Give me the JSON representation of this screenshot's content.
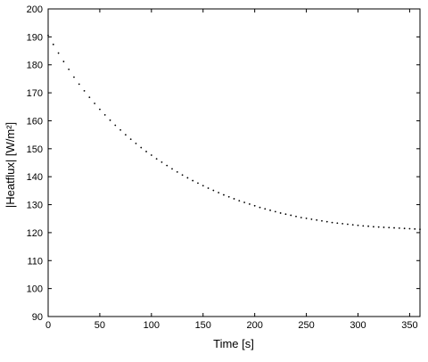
{
  "chart_data": {
    "type": "scatter",
    "title": "",
    "xlabel": "Time [s]",
    "ylabel": "|Heatflux| [W/m²]",
    "xlim": [
      0,
      360
    ],
    "ylim": [
      90,
      200
    ],
    "xticks": [
      0,
      50,
      100,
      150,
      200,
      250,
      300,
      350
    ],
    "yticks": [
      90,
      100,
      110,
      120,
      130,
      140,
      150,
      160,
      170,
      180,
      190,
      200
    ],
    "grid": false,
    "legend": "none",
    "series": [
      {
        "color": "#000000",
        "x": [
          0,
          5,
          10,
          15,
          20,
          25,
          30,
          35,
          40,
          45,
          50,
          55,
          60,
          65,
          70,
          75,
          80,
          85,
          90,
          95,
          100,
          105,
          110,
          115,
          120,
          125,
          130,
          135,
          140,
          145,
          150,
          155,
          160,
          165,
          170,
          175,
          180,
          185,
          190,
          195,
          200,
          205,
          210,
          215,
          220,
          225,
          230,
          235,
          240,
          245,
          250,
          255,
          260,
          265,
          270,
          275,
          280,
          285,
          290,
          295,
          300,
          305,
          310,
          315,
          320,
          325,
          330,
          335,
          340,
          345,
          350,
          355,
          360
        ],
        "y": [
          190.5,
          187.3,
          184.2,
          181.2,
          178.4,
          175.6,
          173.1,
          170.7,
          168.4,
          166.2,
          164.1,
          162.1,
          160.2,
          158.4,
          156.7,
          155.0,
          153.4,
          151.9,
          150.4,
          149.0,
          147.7,
          146.4,
          145.2,
          144.0,
          142.8,
          141.7,
          140.6,
          139.6,
          138.6,
          137.7,
          136.8,
          135.9,
          135.1,
          134.3,
          133.5,
          132.8,
          132.1,
          131.4,
          130.8,
          130.2,
          129.6,
          129.0,
          128.5,
          128.0,
          127.5,
          127.0,
          126.6,
          126.2,
          125.8,
          125.4,
          125.1,
          124.8,
          124.5,
          124.2,
          123.9,
          123.6,
          123.4,
          123.2,
          123.0,
          122.8,
          122.6,
          122.4,
          122.3,
          122.1,
          122.0,
          121.9,
          121.8,
          121.7,
          121.6,
          121.5,
          121.4,
          121.3,
          121.2
        ]
      }
    ]
  }
}
